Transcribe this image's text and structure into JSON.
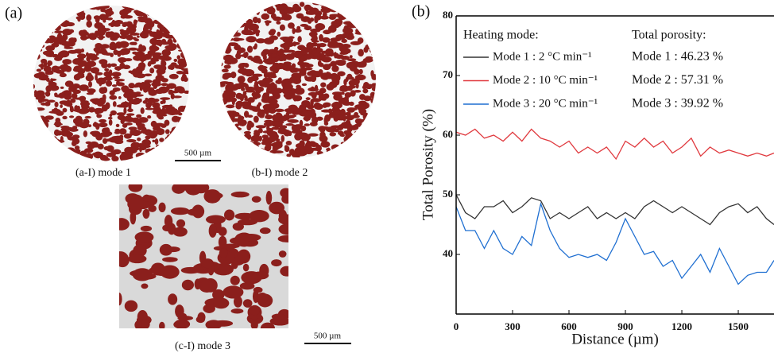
{
  "figure": {
    "panel_label": "(a)",
    "captions": [
      "(a-I) mode 1",
      "(b-I) mode 2",
      "(c-I) mode 3"
    ],
    "scale_bars": [
      "500 µm",
      "500 µm"
    ]
  },
  "chart_data": {
    "type": "line",
    "panel_label": "(b)",
    "x_label": "Distance (µm)",
    "y_label": "Total Porosity (%)",
    "legend_title": "Heating mode:",
    "porosity_title": "Total porosity:",
    "porosity_labels": [
      "Mode 1 : 46.23 %",
      "Mode 2 : 57.31 %",
      "Mode 3 : 39.92 %"
    ],
    "x": [
      0,
      50,
      100,
      150,
      200,
      250,
      300,
      350,
      400,
      450,
      500,
      550,
      600,
      650,
      700,
      750,
      800,
      850,
      900,
      950,
      1000,
      1050,
      1100,
      1150,
      1200,
      1250,
      1300,
      1350,
      1400,
      1450,
      1500,
      1550,
      1600,
      1650,
      1690
    ],
    "series": [
      {
        "name": "Mode 1 : 2 °C min⁻¹",
        "color": "#333333",
        "values": [
          50,
          47,
          46,
          48,
          48,
          49,
          47,
          48,
          49.5,
          49,
          46,
          47,
          46,
          47,
          48,
          46,
          47,
          46,
          47,
          46,
          48,
          49,
          48,
          47,
          48,
          47,
          46,
          45,
          47,
          48,
          48.5,
          47,
          48,
          46,
          45
        ]
      },
      {
        "name": "Mode 2 : 10 °C min⁻¹",
        "color": "#e0393e",
        "values": [
          60.5,
          60,
          61,
          59.5,
          60,
          59,
          60.5,
          59,
          61,
          59.5,
          59,
          58,
          59,
          57,
          58,
          57,
          58,
          56,
          59,
          58,
          59.5,
          58,
          59,
          57,
          58,
          59.5,
          56.5,
          58,
          57,
          57.5,
          57,
          56.5,
          57,
          56.5,
          57
        ]
      },
      {
        "name": "Mode 3 : 20 °C min⁻¹",
        "color": "#1f6fd1",
        "values": [
          48,
          44,
          44,
          41,
          44,
          41,
          40,
          43,
          41.5,
          48.5,
          44,
          41,
          39.5,
          40,
          39.5,
          40,
          39,
          42,
          46,
          43,
          40,
          40.5,
          38,
          39,
          36,
          38,
          40,
          37,
          41,
          38,
          35,
          36.5,
          37,
          37,
          39
        ]
      }
    ],
    "xlim": [
      0,
      1690
    ],
    "xticks": [
      0,
      300,
      600,
      900,
      1200,
      1500
    ],
    "ylim": [
      30,
      80
    ],
    "yticks": [
      40,
      50,
      60,
      70,
      80
    ]
  }
}
